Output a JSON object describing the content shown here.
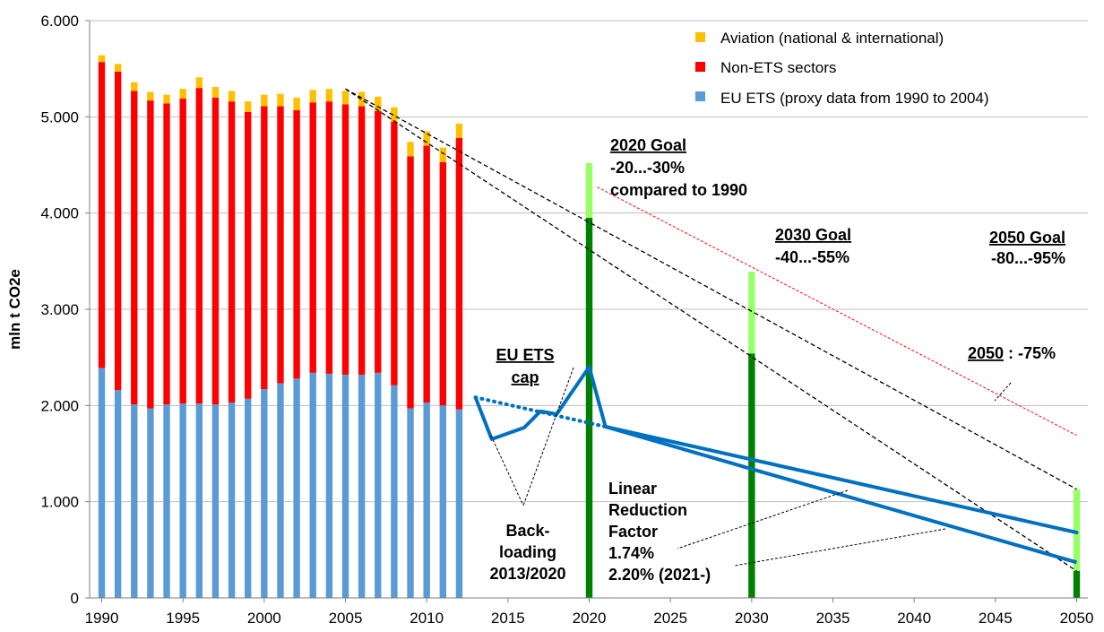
{
  "chart_data": {
    "type": "bar",
    "ylabel": "mln t CO2e",
    "xlim": [
      1990,
      2050
    ],
    "ylim": [
      0,
      6000
    ],
    "y_ticks": [
      {
        "value": 0,
        "label": "0"
      },
      {
        "value": 1000,
        "label": "1.000"
      },
      {
        "value": 2000,
        "label": "2.000"
      },
      {
        "value": 3000,
        "label": "3.000"
      },
      {
        "value": 4000,
        "label": "4.000"
      },
      {
        "value": 5000,
        "label": "5.000"
      },
      {
        "value": 6000,
        "label": "6.000"
      }
    ],
    "x_ticks": [
      "1990",
      "1995",
      "2000",
      "2005",
      "2010",
      "2015",
      "2020",
      "2025",
      "2030",
      "2035",
      "2040",
      "2045",
      "2050"
    ],
    "legend_position": "top-right",
    "legend": [
      {
        "name": "Aviation (national & international)",
        "color": "#FFC000"
      },
      {
        "name": "Non-ETS sectors",
        "color": "#FF0000"
      },
      {
        "name": "EU ETS (proxy data from 1990 to 2004)",
        "color": "#5B9BD5"
      }
    ],
    "colors": {
      "ets": "#5B9BD5",
      "non_ets": "#FF0000",
      "aviation": "#FFC000",
      "goal_dark": "#008000",
      "goal_light": "#99FF66",
      "cap": "#0070C0",
      "trend": "#000000",
      "goal_trend": "#FF0000"
    },
    "years": [
      1990,
      1991,
      1992,
      1993,
      1994,
      1995,
      1996,
      1997,
      1998,
      1999,
      2000,
      2001,
      2002,
      2003,
      2004,
      2005,
      2006,
      2007,
      2008,
      2009,
      2010,
      2011,
      2012
    ],
    "series": [
      {
        "name": "EU ETS (proxy data from 1990 to 2004)",
        "values": [
          2390,
          2160,
          2010,
          1970,
          2010,
          2020,
          2020,
          2010,
          2030,
          2070,
          2170,
          2230,
          2280,
          2340,
          2330,
          2320,
          2320,
          2340,
          2210,
          1970,
          2030,
          2000,
          1960
        ]
      },
      {
        "name": "Non-ETS sectors",
        "values": [
          3180,
          3310,
          3260,
          3200,
          3130,
          3170,
          3280,
          3190,
          3130,
          2980,
          2940,
          2880,
          2790,
          2810,
          2830,
          2810,
          2790,
          2720,
          2740,
          2620,
          2670,
          2530,
          2820
        ]
      },
      {
        "name": "Aviation (national & international)",
        "values": [
          70,
          80,
          90,
          90,
          90,
          100,
          110,
          110,
          110,
          110,
          120,
          130,
          130,
          130,
          130,
          140,
          150,
          150,
          150,
          150,
          150,
          150,
          150
        ]
      }
    ],
    "goal_bars": [
      {
        "year": 2020,
        "solid": 3950,
        "range_top": 4520
      },
      {
        "year": 2030,
        "solid": 2540,
        "range_top": 3390
      },
      {
        "year": 2050,
        "solid": 280,
        "range_top": 1130
      }
    ],
    "cap_line": [
      [
        2013,
        2085
      ],
      [
        2014,
        1650
      ],
      [
        2016,
        1770
      ],
      [
        2017,
        1940
      ],
      [
        2018,
        1910
      ],
      [
        2020,
        2400
      ],
      [
        2021,
        1780
      ],
      [
        2030,
        1340
      ],
      [
        2050,
        370
      ]
    ],
    "cap_line_1_74": [
      [
        2021,
        1780
      ],
      [
        2050,
        680
      ]
    ],
    "backloading_dotted": [
      [
        2013,
        2085
      ],
      [
        2021,
        1780
      ]
    ],
    "trend_lines": [
      {
        "from": [
          2005,
          5290
        ],
        "to": [
          2050,
          280
        ]
      },
      {
        "from": [
          2005,
          5290
        ],
        "to": [
          2050,
          1130
        ]
      }
    ],
    "goal_trend_line": {
      "from": [
        2020.5,
        4270
      ],
      "to": [
        2050,
        1690
      ]
    },
    "annotations": {
      "goal_2020": [
        "2020 Goal",
        "-20...-30%",
        "compared to 1990"
      ],
      "goal_2030": [
        "2030 Goal",
        "-40...-55%"
      ],
      "goal_2050": [
        "2050 Goal",
        "-80...-95%"
      ],
      "target_2050_label": "2050",
      "target_2050_value": ": -75%",
      "eu_ets_cap": [
        "EU ETS",
        "cap"
      ],
      "backloading": [
        "Back-",
        "loading",
        "2013/2020"
      ],
      "lrf": [
        "Linear",
        "Reduction",
        "Factor",
        "1.74%",
        "2.20% (2021-)"
      ]
    }
  }
}
